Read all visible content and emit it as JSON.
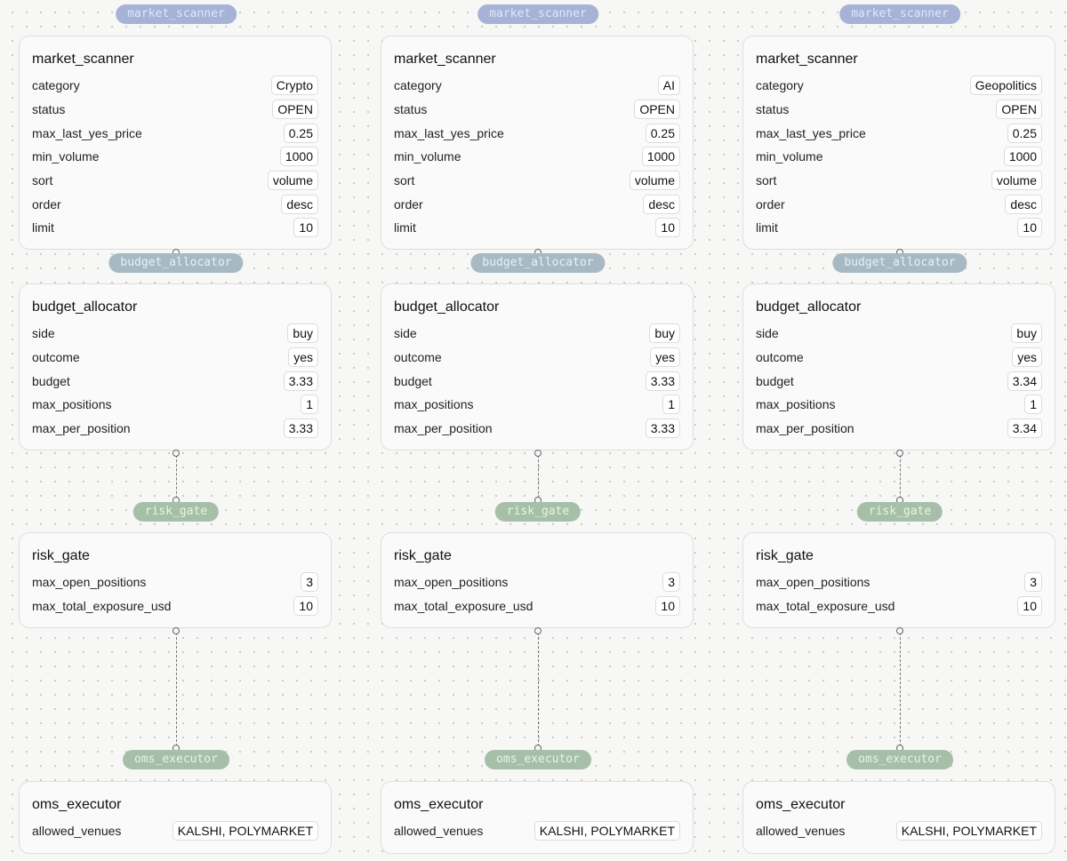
{
  "pipelines": [
    {
      "market_scanner": {
        "label": "market_scanner",
        "title": "market_scanner",
        "params": [
          {
            "key": "category",
            "value": "Crypto"
          },
          {
            "key": "status",
            "value": "OPEN"
          },
          {
            "key": "max_last_yes_price",
            "value": "0.25"
          },
          {
            "key": "min_volume",
            "value": "1000"
          },
          {
            "key": "sort",
            "value": "volume"
          },
          {
            "key": "order",
            "value": "desc"
          },
          {
            "key": "limit",
            "value": "10"
          }
        ]
      },
      "budget_allocator": {
        "label": "budget_allocator",
        "title": "budget_allocator",
        "params": [
          {
            "key": "side",
            "value": "buy"
          },
          {
            "key": "outcome",
            "value": "yes"
          },
          {
            "key": "budget",
            "value": "3.33"
          },
          {
            "key": "max_positions",
            "value": "1"
          },
          {
            "key": "max_per_position",
            "value": "3.33"
          }
        ]
      },
      "risk_gate": {
        "label": "risk_gate",
        "title": "risk_gate",
        "params": [
          {
            "key": "max_open_positions",
            "value": "3"
          },
          {
            "key": "max_total_exposure_usd",
            "value": "10"
          }
        ]
      },
      "oms_executor": {
        "label": "oms_executor",
        "title": "oms_executor",
        "params": [
          {
            "key": "allowed_venues",
            "value": "KALSHI, POLYMARKET"
          }
        ]
      }
    },
    {
      "market_scanner": {
        "label": "market_scanner",
        "title": "market_scanner",
        "params": [
          {
            "key": "category",
            "value": "AI"
          },
          {
            "key": "status",
            "value": "OPEN"
          },
          {
            "key": "max_last_yes_price",
            "value": "0.25"
          },
          {
            "key": "min_volume",
            "value": "1000"
          },
          {
            "key": "sort",
            "value": "volume"
          },
          {
            "key": "order",
            "value": "desc"
          },
          {
            "key": "limit",
            "value": "10"
          }
        ]
      },
      "budget_allocator": {
        "label": "budget_allocator",
        "title": "budget_allocator",
        "params": [
          {
            "key": "side",
            "value": "buy"
          },
          {
            "key": "outcome",
            "value": "yes"
          },
          {
            "key": "budget",
            "value": "3.33"
          },
          {
            "key": "max_positions",
            "value": "1"
          },
          {
            "key": "max_per_position",
            "value": "3.33"
          }
        ]
      },
      "risk_gate": {
        "label": "risk_gate",
        "title": "risk_gate",
        "params": [
          {
            "key": "max_open_positions",
            "value": "3"
          },
          {
            "key": "max_total_exposure_usd",
            "value": "10"
          }
        ]
      },
      "oms_executor": {
        "label": "oms_executor",
        "title": "oms_executor",
        "params": [
          {
            "key": "allowed_venues",
            "value": "KALSHI, POLYMARKET"
          }
        ]
      }
    },
    {
      "market_scanner": {
        "label": "market_scanner",
        "title": "market_scanner",
        "params": [
          {
            "key": "category",
            "value": "Geopolitics"
          },
          {
            "key": "status",
            "value": "OPEN"
          },
          {
            "key": "max_last_yes_price",
            "value": "0.25"
          },
          {
            "key": "min_volume",
            "value": "1000"
          },
          {
            "key": "sort",
            "value": "volume"
          },
          {
            "key": "order",
            "value": "desc"
          },
          {
            "key": "limit",
            "value": "10"
          }
        ]
      },
      "budget_allocator": {
        "label": "budget_allocator",
        "title": "budget_allocator",
        "params": [
          {
            "key": "side",
            "value": "buy"
          },
          {
            "key": "outcome",
            "value": "yes"
          },
          {
            "key": "budget",
            "value": "3.34"
          },
          {
            "key": "max_positions",
            "value": "1"
          },
          {
            "key": "max_per_position",
            "value": "3.34"
          }
        ]
      },
      "risk_gate": {
        "label": "risk_gate",
        "title": "risk_gate",
        "params": [
          {
            "key": "max_open_positions",
            "value": "3"
          },
          {
            "key": "max_total_exposure_usd",
            "value": "10"
          }
        ]
      },
      "oms_executor": {
        "label": "oms_executor",
        "title": "oms_executor",
        "params": [
          {
            "key": "allowed_venues",
            "value": "KALSHI, POLYMARKET"
          }
        ]
      }
    }
  ],
  "colors": {
    "scanner_pill": "#a6b3d6",
    "allocator_pill": "#a9b9c4",
    "gate_pill": "#a7bfa9",
    "executor_pill": "#a7bfa9"
  }
}
